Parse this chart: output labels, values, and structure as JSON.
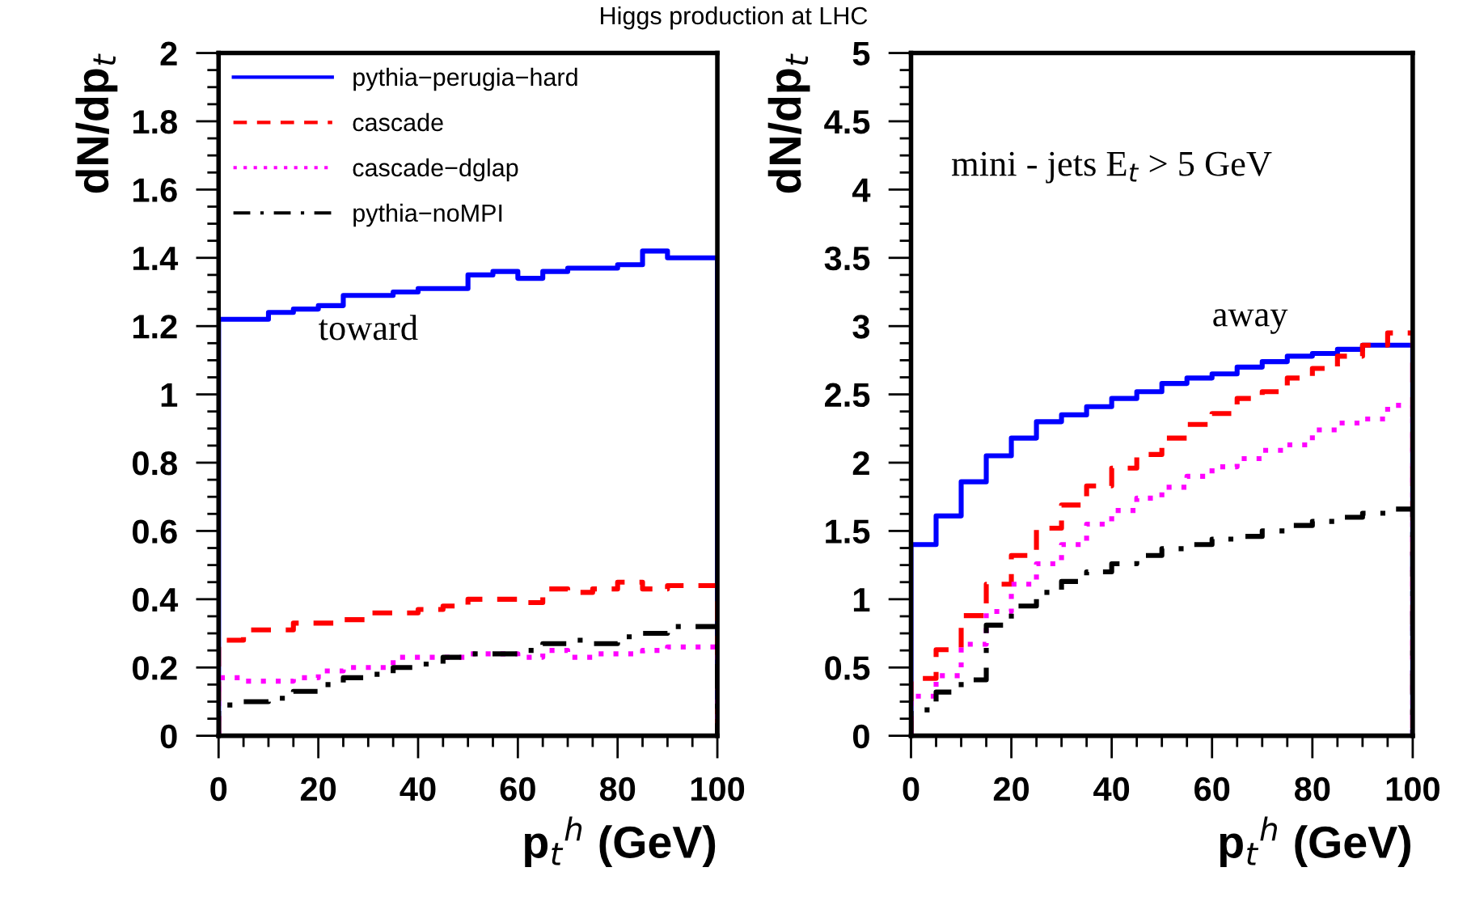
{
  "chart_data": [
    {
      "type": "histogram",
      "title": "Higgs production at LHC",
      "xlabel": "p$_{t}$$^{h}$ (GeV)",
      "ylabel": "dN/dp$_{t}$",
      "bins": [
        0,
        5,
        10,
        15,
        20,
        25,
        30,
        35,
        40,
        45,
        50,
        55,
        60,
        65,
        70,
        75,
        80,
        85,
        90,
        95,
        100
      ],
      "xlim": [
        0,
        100
      ],
      "xticks": [
        0,
        20,
        40,
        60,
        80,
        100
      ],
      "ylim": [
        0,
        2
      ],
      "yticks": [
        0,
        0.2,
        0.4,
        0.6,
        0.8,
        1,
        1.2,
        1.4,
        1.6,
        1.8,
        2
      ],
      "legend": "top left",
      "annotations": [
        "toward"
      ],
      "series": [
        {
          "name": "pythia−perugia−hard",
          "color": "#0000ff",
          "line_style": "solid",
          "values": [
            1.22,
            1.22,
            1.24,
            1.25,
            1.26,
            1.29,
            1.29,
            1.3,
            1.31,
            1.31,
            1.35,
            1.36,
            1.34,
            1.36,
            1.37,
            1.37,
            1.38,
            1.42,
            1.4,
            1.4
          ]
        },
        {
          "name": "cascade",
          "color": "#ff0000",
          "line_style": "dashed",
          "values": [
            0.28,
            0.31,
            0.31,
            0.33,
            0.33,
            0.34,
            0.36,
            0.36,
            0.37,
            0.38,
            0.4,
            0.4,
            0.39,
            0.43,
            0.42,
            0.43,
            0.45,
            0.43,
            0.44,
            0.44
          ]
        },
        {
          "name": "cascade−dglap",
          "color": "#ff00ff",
          "line_style": "dotted",
          "values": [
            0.17,
            0.16,
            0.16,
            0.17,
            0.19,
            0.2,
            0.2,
            0.23,
            0.23,
            0.23,
            0.24,
            0.24,
            0.23,
            0.25,
            0.23,
            0.24,
            0.24,
            0.25,
            0.26,
            0.26
          ]
        },
        {
          "name": "pythia−noMPI",
          "color": "#000000",
          "line_style": "dashdot",
          "values": [
            0.09,
            0.1,
            0.11,
            0.13,
            0.15,
            0.17,
            0.18,
            0.2,
            0.21,
            0.23,
            0.24,
            0.24,
            0.25,
            0.27,
            0.28,
            0.27,
            0.29,
            0.3,
            0.32,
            0.32
          ]
        }
      ]
    },
    {
      "type": "histogram",
      "xlabel": "p$_{t}$$^{h}$ (GeV)",
      "ylabel": "dN/dp$_{t}$",
      "bins": [
        0,
        5,
        10,
        15,
        20,
        25,
        30,
        35,
        40,
        45,
        50,
        55,
        60,
        65,
        70,
        75,
        80,
        85,
        90,
        95,
        100
      ],
      "xlim": [
        0,
        100
      ],
      "xticks": [
        0,
        20,
        40,
        60,
        80,
        100
      ],
      "ylim": [
        0,
        5
      ],
      "yticks": [
        0,
        0.5,
        1,
        1.5,
        2,
        2.5,
        3,
        3.5,
        4,
        4.5,
        5
      ],
      "annotations": [
        "mini - jets E$_{t}$ > 5 GeV",
        "away"
      ],
      "series": [
        {
          "color": "#0000ff",
          "line_style": "solid",
          "values": [
            1.4,
            1.61,
            1.86,
            2.05,
            2.18,
            2.3,
            2.35,
            2.41,
            2.47,
            2.52,
            2.58,
            2.62,
            2.65,
            2.7,
            2.74,
            2.78,
            2.8,
            2.83,
            2.86,
            2.86
          ]
        },
        {
          "color": "#ff0000",
          "line_style": "dashed",
          "values": [
            0.42,
            0.63,
            0.88,
            1.11,
            1.32,
            1.52,
            1.69,
            1.83,
            1.96,
            2.06,
            2.18,
            2.28,
            2.36,
            2.47,
            2.52,
            2.62,
            2.69,
            2.78,
            2.86,
            2.95
          ]
        },
        {
          "color": "#ff00ff",
          "line_style": "dotted",
          "values": [
            0.29,
            0.44,
            0.67,
            0.91,
            1.11,
            1.26,
            1.4,
            1.55,
            1.65,
            1.74,
            1.82,
            1.9,
            1.97,
            2.03,
            2.09,
            2.13,
            2.24,
            2.29,
            2.32,
            2.42
          ]
        },
        {
          "color": "#000000",
          "line_style": "dashdot",
          "values": [
            0.19,
            0.32,
            0.41,
            0.81,
            0.95,
            1.05,
            1.13,
            1.2,
            1.26,
            1.32,
            1.37,
            1.4,
            1.44,
            1.46,
            1.5,
            1.54,
            1.57,
            1.6,
            1.63,
            1.66
          ]
        }
      ]
    }
  ]
}
